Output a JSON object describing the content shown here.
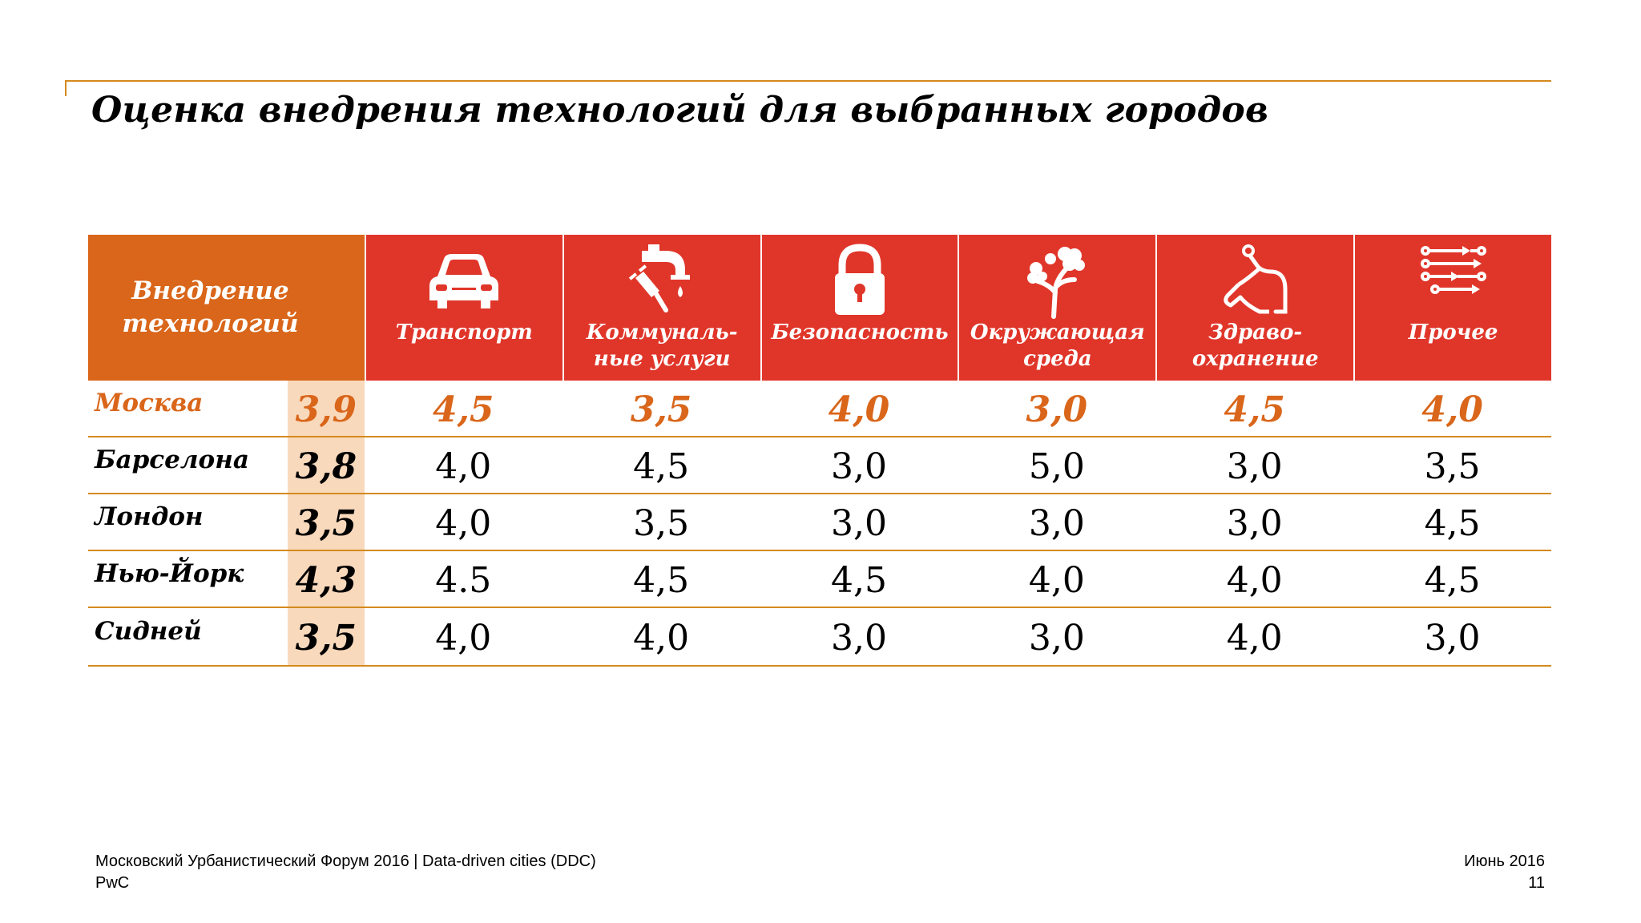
{
  "title": "Оценка внедрения технологий для выбранных городов",
  "header": {
    "main_label": "Внедрение\nтехнологий",
    "categories": [
      {
        "label": "Транспорт",
        "icon": "car-icon"
      },
      {
        "label": "Коммуналь-\nные услуги",
        "icon": "utilities-icon"
      },
      {
        "label": "Безопасность",
        "icon": "lock-icon"
      },
      {
        "label": "Окружающая\nсреда",
        "icon": "tree-icon"
      },
      {
        "label": "Здраво-\nохранение",
        "icon": "stethoscope-icon"
      },
      {
        "label": "Прочее",
        "icon": "sliders-icon"
      }
    ]
  },
  "rows": [
    {
      "city": "Москва",
      "overall": "3,9",
      "values": [
        "4,5",
        "3,5",
        "4,0",
        "3,0",
        "4,5",
        "4,0"
      ]
    },
    {
      "city": "Барселона",
      "overall": "3,8",
      "values": [
        "4,0",
        "4,5",
        "3,0",
        "5,0",
        "3,0",
        "3,5"
      ]
    },
    {
      "city": "Лондон",
      "overall": "3,5",
      "values": [
        "4,0",
        "3,5",
        "3,0",
        "3,0",
        "3,0",
        "4,5"
      ]
    },
    {
      "city": "Нью-Йорк",
      "overall": "4,3",
      "values": [
        "4.5",
        "4,5",
        "4,5",
        "4,0",
        "4,0",
        "4,5"
      ]
    },
    {
      "city": "Сидней",
      "overall": "3,5",
      "values": [
        "4,0",
        "4,0",
        "3,0",
        "3,0",
        "4,0",
        "3,0"
      ]
    }
  ],
  "footer": {
    "source": "Московский Урбанистический Форум 2016 | Data-driven cities (DDC)",
    "company": "PwC",
    "date": "Июнь 2016",
    "page": "11"
  },
  "colors": {
    "header_main": "#d9661a",
    "header_categories": "#e0362a",
    "highlight_text": "#d9661a",
    "overall_column": "#f9d9bc",
    "rule": "#d48a1e"
  }
}
